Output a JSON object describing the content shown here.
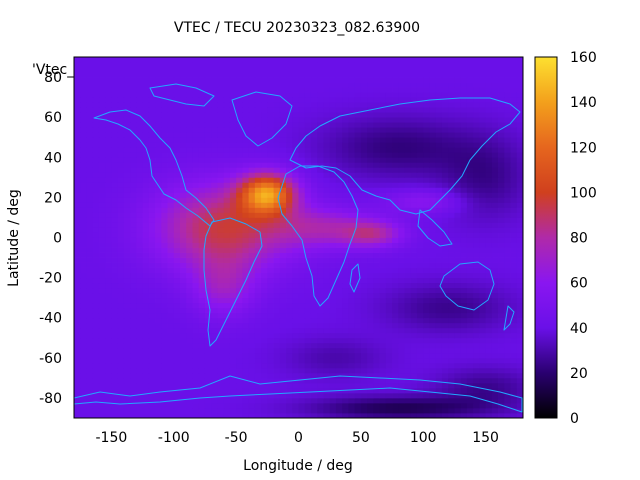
{
  "chart_data": {
    "type": "heatmap",
    "title": "VTEC / TECU 20230323_082.63900",
    "xlabel": "Longitude / deg",
    "ylabel": "Latitude / deg",
    "key_label": "'Vtec_",
    "xlim": [
      -180,
      180
    ],
    "ylim": [
      -90,
      90
    ],
    "x_ticks": [
      -150,
      -100,
      -50,
      0,
      50,
      100,
      150
    ],
    "y_ticks": [
      80,
      60,
      40,
      20,
      0,
      -20,
      -40,
      -60,
      -80
    ],
    "colorbar": {
      "range": [
        0,
        160
      ],
      "ticks": [
        0,
        20,
        40,
        60,
        80,
        100,
        120,
        140,
        160
      ],
      "palette": [
        "#000000",
        "#2a0070",
        "#6a10e8",
        "#8a16f0",
        "#b02aa8",
        "#d0401e",
        "#e6661e",
        "#f3a01c",
        "#fde030"
      ]
    },
    "grid": false,
    "colorscale_note": "",
    "background_vtec": 40,
    "features": [
      {
        "lon": -25,
        "lat": 22,
        "amp": 85,
        "slon": 22,
        "slat": 10
      },
      {
        "lon": -60,
        "lat": 5,
        "amp": 55,
        "slon": 55,
        "slat": 22
      },
      {
        "lon": 20,
        "lat": 5,
        "amp": 30,
        "slon": 40,
        "slat": 10
      },
      {
        "lon": 60,
        "lat": 2,
        "amp": 35,
        "slon": 25,
        "slat": 7
      },
      {
        "lon": 100,
        "lat": 18,
        "amp": 20,
        "slon": 30,
        "slat": 6
      },
      {
        "lon": -60,
        "lat": -25,
        "amp": 25,
        "slon": 25,
        "slat": 15
      },
      {
        "lon": 80,
        "lat": 45,
        "amp": -18,
        "slon": 60,
        "slat": 15
      },
      {
        "lon": 150,
        "lat": 30,
        "amp": -15,
        "slon": 35,
        "slat": 20
      },
      {
        "lon": 120,
        "lat": -35,
        "amp": -15,
        "slon": 50,
        "slat": 12
      },
      {
        "lon": 30,
        "lat": -60,
        "amp": -10,
        "slon": 40,
        "slat": 10
      },
      {
        "lon": 80,
        "lat": -85,
        "amp": -25,
        "slon": 70,
        "slat": 6
      },
      {
        "lon": 150,
        "lat": -75,
        "amp": -15,
        "slon": 40,
        "slat": 10
      }
    ]
  }
}
